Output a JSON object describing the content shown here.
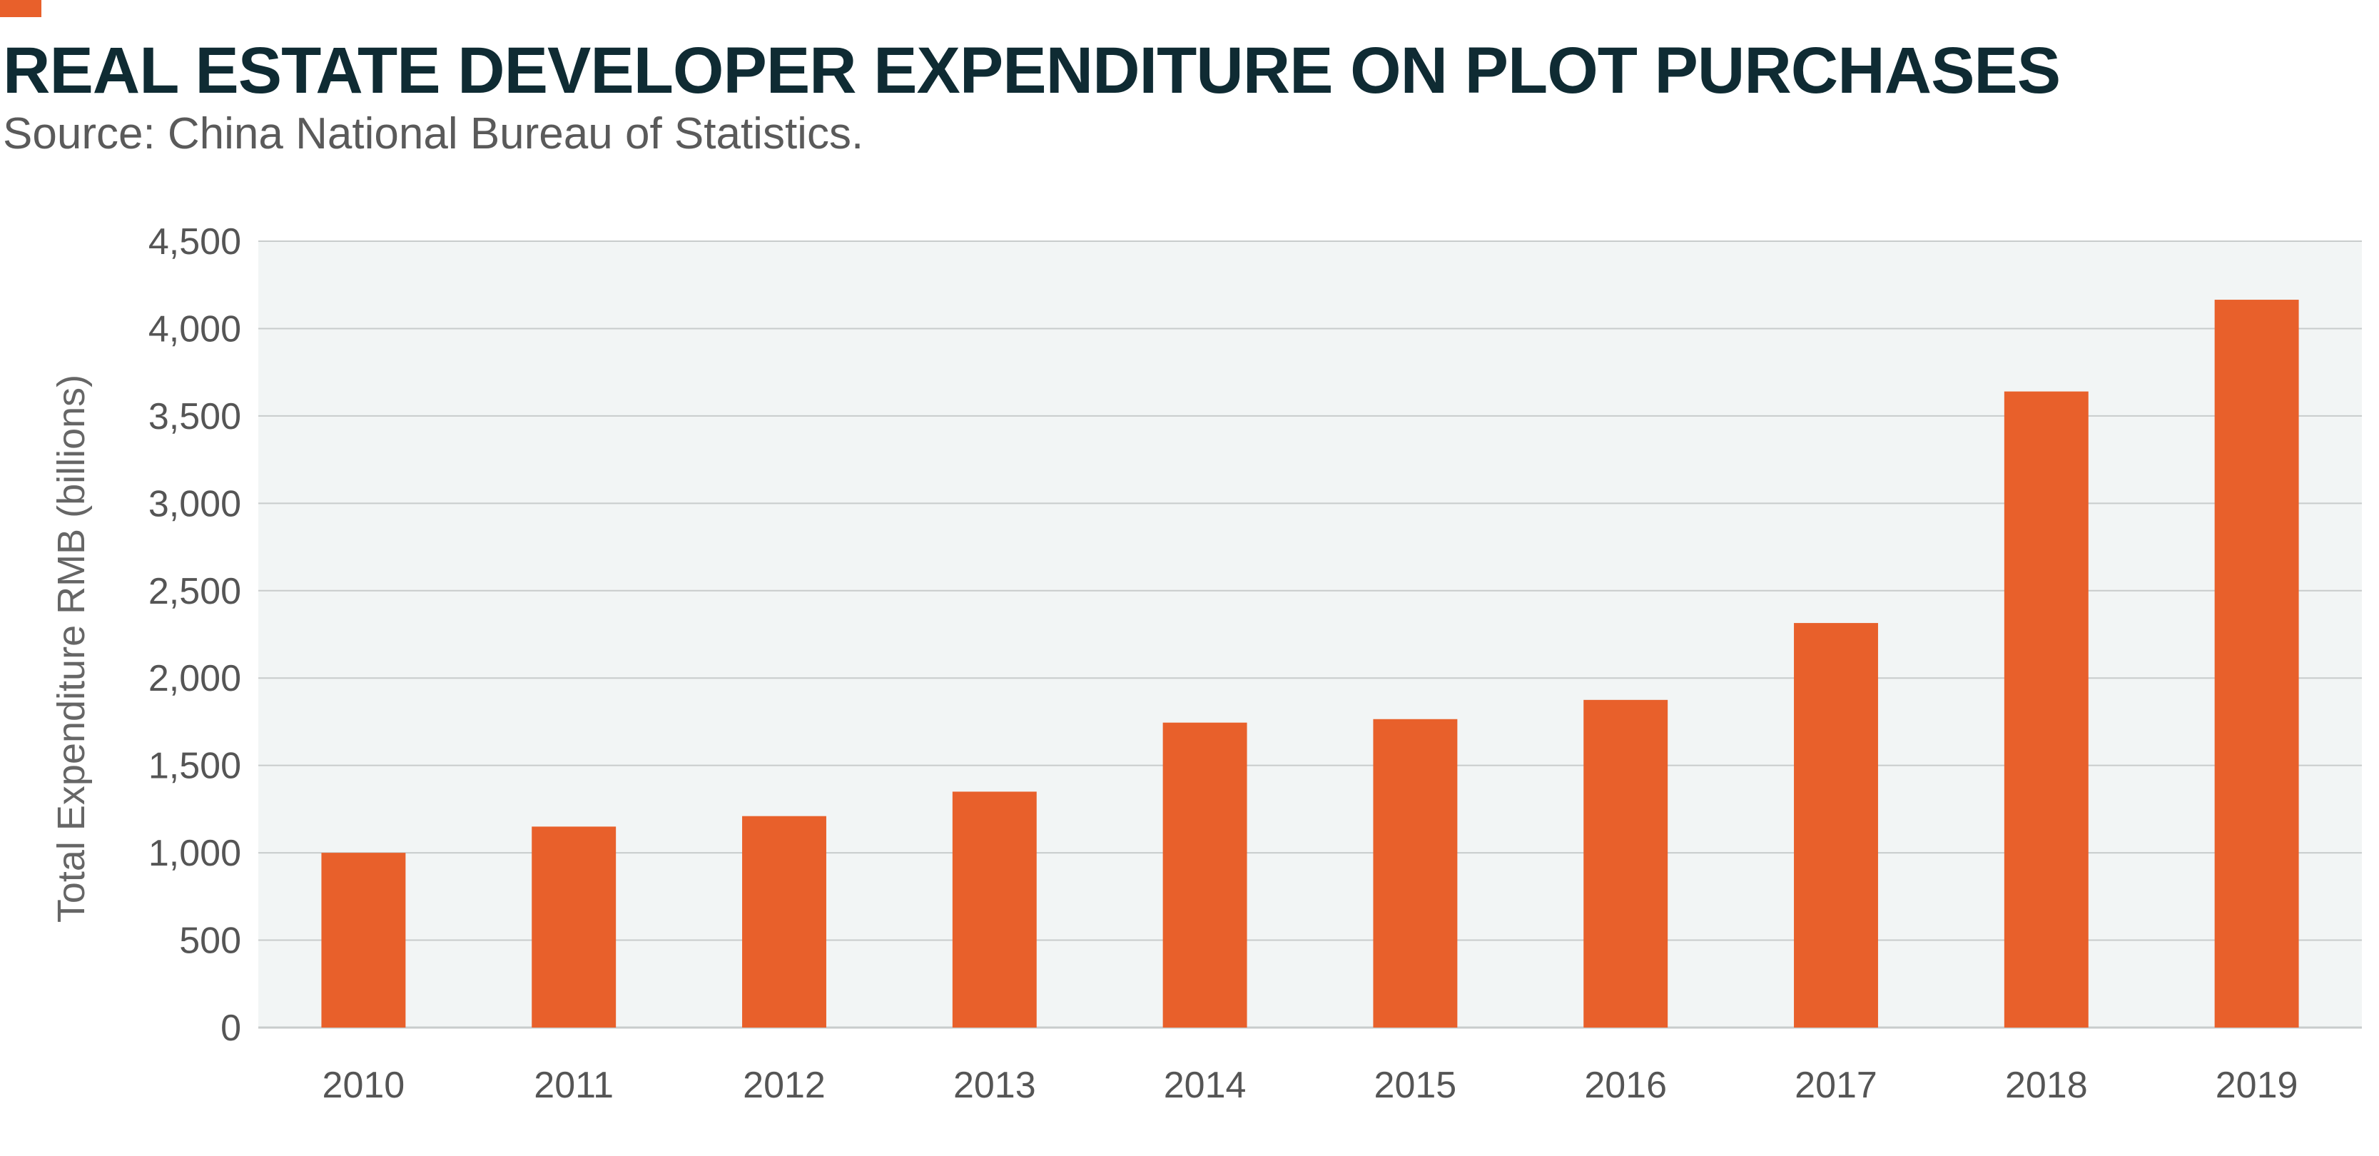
{
  "title": "REAL ESTATE DEVELOPER EXPENDITURE ON PLOT PURCHASES",
  "subtitle": "Source: China National Bureau of Statistics.",
  "colors": {
    "accent": "#e8602b",
    "bar": "#e8602b",
    "plot_background": "#f2f5f5",
    "gridline": "#c8cccc",
    "title": "#0f2b33"
  },
  "chart_data": {
    "type": "bar",
    "title": "REAL ESTATE DEVELOPER EXPENDITURE ON PLOT PURCHASES",
    "subtitle": "Source: China National Bureau of Statistics.",
    "xlabel": "",
    "ylabel": "Total Expenditure RMB (billions)",
    "categories": [
      "2010",
      "2011",
      "2012",
      "2013",
      "2014",
      "2015",
      "2016",
      "2017",
      "2018",
      "2019"
    ],
    "values": [
      1000,
      1150,
      1210,
      1350,
      1745,
      1765,
      1875,
      2315,
      3640,
      4165
    ],
    "ylim": [
      0,
      4500
    ],
    "yticks": [
      0,
      500,
      1000,
      1500,
      2000,
      2500,
      3000,
      3500,
      4000,
      4500
    ],
    "ytick_labels": [
      "0",
      "500",
      "1,000",
      "1,500",
      "2,000",
      "2,500",
      "3,000",
      "3,500",
      "4,000",
      "4,500"
    ],
    "grid": true,
    "legend": "none"
  }
}
